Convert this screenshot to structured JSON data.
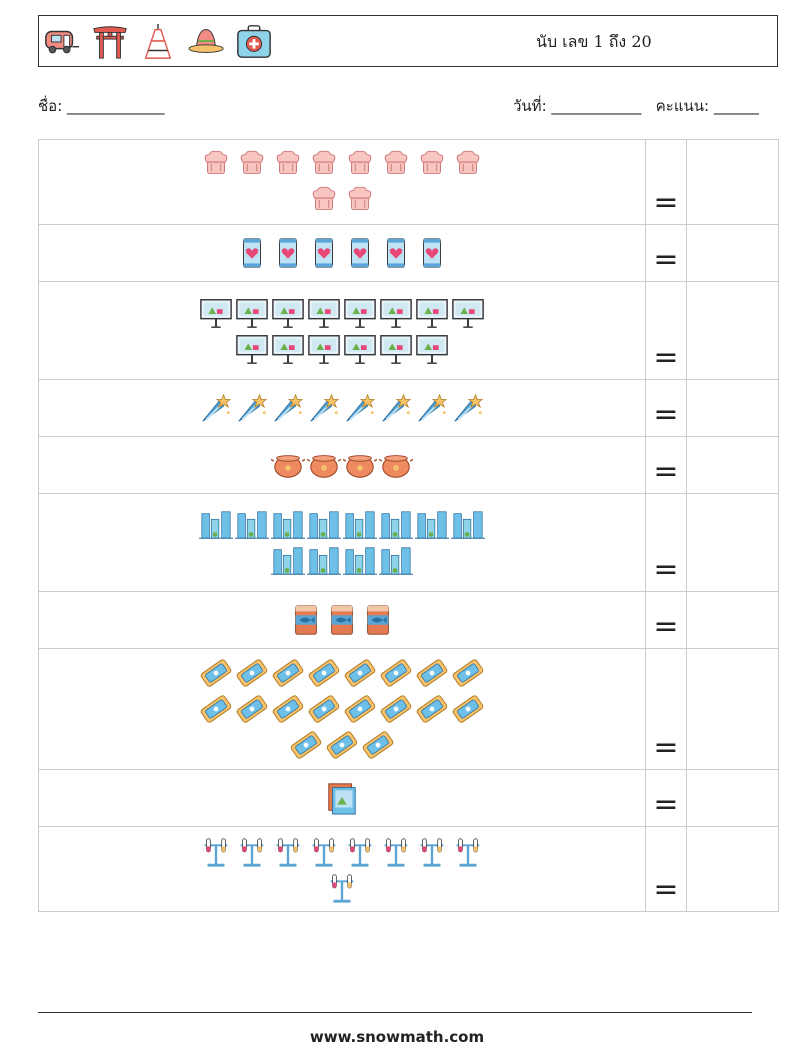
{
  "header": {
    "title": "นับ เลข 1 ถึง 20",
    "icons": [
      "camper-van-icon",
      "torii-gate-icon",
      "tokyo-tower-icon",
      "sombrero-icon",
      "first-aid-kit-icon"
    ]
  },
  "info": {
    "name_label": "ชื่อ:",
    "name_blank": "_____________",
    "date_label": "วันที่:",
    "date_blank": "____________",
    "score_label": "คะแนน:",
    "score_blank": "______"
  },
  "rows": [
    {
      "icon": "chef-hat-icon",
      "count": 10,
      "eq": "="
    },
    {
      "icon": "love-smartphone-icon",
      "count": 6,
      "eq": "="
    },
    {
      "icon": "presentation-board-icon",
      "count": 14,
      "eq": "="
    },
    {
      "icon": "shooting-star-icon",
      "count": 8,
      "eq": "="
    },
    {
      "icon": "cooking-pot-icon",
      "count": 4,
      "eq": "="
    },
    {
      "icon": "city-buildings-icon",
      "count": 12,
      "eq": "="
    },
    {
      "icon": "fish-can-icon",
      "count": 3,
      "eq": "="
    },
    {
      "icon": "ticket-icon",
      "count": 19,
      "eq": "="
    },
    {
      "icon": "photo-frame-icon",
      "count": 1,
      "eq": "="
    },
    {
      "icon": "test-tube-rack-icon",
      "count": 9,
      "eq": "="
    }
  ],
  "footer": {
    "url": "www.snowmath.com"
  }
}
